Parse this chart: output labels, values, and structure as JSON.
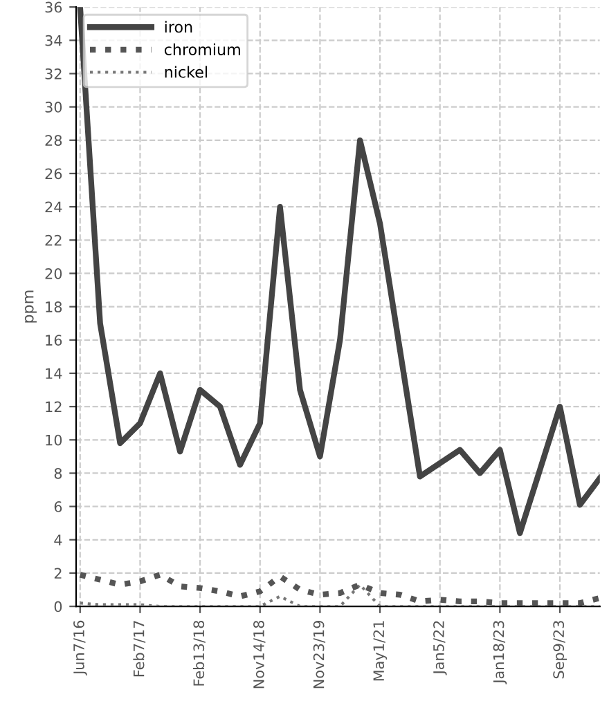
{
  "chart_data": {
    "type": "line",
    "ylabel": "ppm",
    "categories": [
      "Jun7/16",
      null,
      null,
      "Feb7/17",
      null,
      null,
      "Feb13/18",
      null,
      null,
      "Nov14/18",
      null,
      null,
      "Nov23/19",
      null,
      null,
      "May1/21",
      null,
      null,
      "Jan5/22",
      null,
      null,
      "Jan18/23",
      null,
      null,
      "Sep9/23",
      null,
      null
    ],
    "series": [
      {
        "name": "iron",
        "color": "#444444",
        "line_style": "solid",
        "values": [
          36,
          17,
          9.8,
          11,
          14,
          9.3,
          13,
          12,
          8.5,
          11,
          24,
          13,
          9,
          16,
          28,
          23,
          15.4,
          7.8,
          8.6,
          9.4,
          8,
          9.4,
          4.4,
          8.2,
          12,
          6.1,
          7.7
        ]
      },
      {
        "name": "chromium",
        "color": "#555555",
        "line_style": "dotted",
        "values": [
          1.9,
          1.6,
          1.3,
          1.5,
          1.9,
          1.2,
          1.1,
          0.9,
          0.6,
          0.9,
          1.8,
          1.0,
          0.7,
          0.8,
          1.3,
          0.8,
          0.7,
          0.3,
          0.4,
          0.3,
          0.3,
          0.2,
          0.2,
          0.2,
          0.2,
          0.2,
          0.5
        ]
      },
      {
        "name": "nickel",
        "color": "#777777",
        "line_style": "dotted",
        "values": [
          0.2,
          0.1,
          0.1,
          0.1,
          0,
          0,
          0,
          0,
          0,
          0,
          0.6,
          0,
          0,
          0,
          1.3,
          0,
          0,
          0,
          0,
          0,
          0,
          0,
          0,
          0,
          0,
          0,
          0
        ]
      }
    ],
    "ylim": [
      0,
      36
    ],
    "yticks": [
      0,
      2,
      4,
      6,
      8,
      10,
      12,
      14,
      16,
      18,
      20,
      22,
      24,
      26,
      28,
      30,
      32,
      34,
      36
    ],
    "grid": true,
    "legend": "top left",
    "marker": "none"
  }
}
